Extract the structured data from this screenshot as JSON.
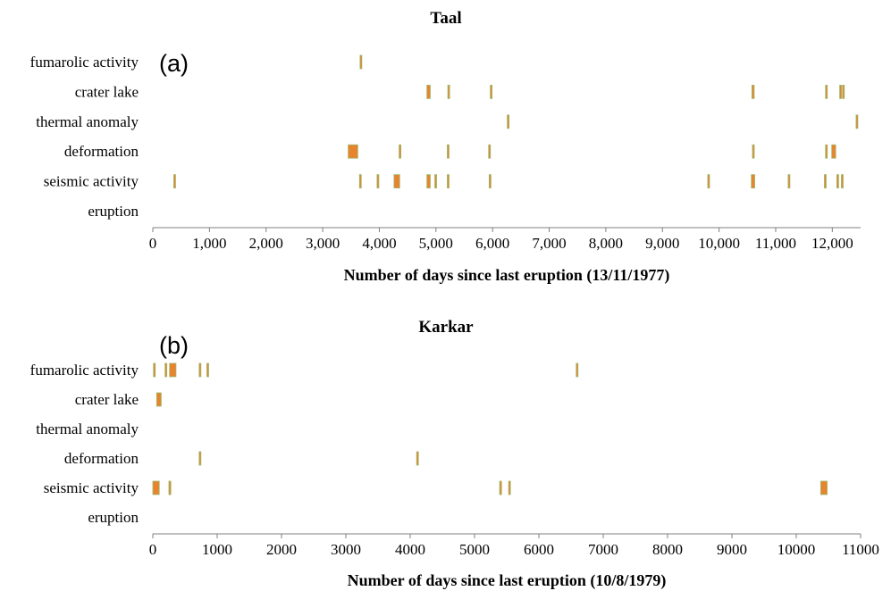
{
  "chart_data": [
    {
      "type": "scatter",
      "title": "Taal",
      "panel_label": "(a)",
      "xlabel": "Number of days since last eruption (13/11/1977)",
      "ylabel": "",
      "xlim": [
        0,
        12500
      ],
      "x_ticks": [
        0,
        1000,
        2000,
        3000,
        4000,
        5000,
        6000,
        7000,
        8000,
        9000,
        10000,
        11000,
        12000
      ],
      "x_tick_labels": [
        "0",
        "1,000",
        "2,000",
        "3,000",
        "4,000",
        "5,000",
        "6,000",
        "7,000",
        "8,000",
        "9,000",
        "10,000",
        "11,000",
        "12,000"
      ],
      "categories": [
        "fumarolic activity",
        "crater lake",
        "thermal anomaly",
        "deformation",
        "seismic activity",
        "eruption"
      ],
      "marker_color": "#e8842e",
      "marker_edge_color": "#9cb86a",
      "series": [
        {
          "category": "fumarolic activity",
          "events": [
            [
              3660,
              3680
            ]
          ]
        },
        {
          "category": "crater lake",
          "events": [
            [
              4840,
              4900
            ],
            [
              5210,
              5230
            ],
            [
              5960,
              5980
            ],
            [
              10580,
              10620
            ],
            [
              11880,
              11900
            ],
            [
              12130,
              12150
            ],
            [
              12180,
              12200
            ]
          ]
        },
        {
          "category": "thermal anomaly",
          "events": [
            [
              6260,
              6280
            ],
            [
              12420,
              12450
            ]
          ]
        },
        {
          "category": "deformation",
          "events": [
            [
              3450,
              3620
            ],
            [
              4350,
              4380
            ],
            [
              5200,
              5230
            ],
            [
              5930,
              5950
            ],
            [
              10590,
              10610
            ],
            [
              11880,
              11900
            ],
            [
              11990,
              12060
            ]
          ]
        },
        {
          "category": "seismic activity",
          "events": [
            [
              370,
              390
            ],
            [
              3650,
              3680
            ],
            [
              3960,
              3980
            ],
            [
              4260,
              4360
            ],
            [
              4840,
              4900
            ],
            [
              4980,
              5000
            ],
            [
              5200,
              5230
            ],
            [
              5940,
              5960
            ],
            [
              9800,
              9830
            ],
            [
              10570,
              10630
            ],
            [
              11220,
              11240
            ],
            [
              11860,
              11880
            ],
            [
              12080,
              12100
            ],
            [
              12160,
              12180
            ]
          ]
        },
        {
          "category": "eruption",
          "events": []
        }
      ]
    },
    {
      "type": "scatter",
      "title": "Karkar",
      "panel_label": "(b)",
      "xlabel": "Number of days since last eruption (10/8/1979)",
      "ylabel": "",
      "xlim": [
        0,
        11000
      ],
      "x_ticks": [
        0,
        1000,
        2000,
        3000,
        4000,
        5000,
        6000,
        7000,
        8000,
        9000,
        10000,
        11000
      ],
      "x_tick_labels": [
        "0",
        "1000",
        "2000",
        "3000",
        "4000",
        "5000",
        "6000",
        "7000",
        "8000",
        "9000",
        "10000",
        "11000"
      ],
      "categories": [
        "fumarolic activity",
        "crater lake",
        "thermal anomaly",
        "deformation",
        "seismic activity",
        "eruption"
      ],
      "marker_color": "#e8842e",
      "marker_edge_color": "#9cb86a",
      "series": [
        {
          "category": "fumarolic activity",
          "events": [
            [
              10,
              30
            ],
            [
              190,
              210
            ],
            [
              260,
              360
            ],
            [
              720,
              740
            ],
            [
              840,
              860
            ],
            [
              6580,
              6600
            ]
          ]
        },
        {
          "category": "crater lake",
          "events": [
            [
              60,
              130
            ]
          ]
        },
        {
          "category": "thermal anomaly",
          "events": []
        },
        {
          "category": "deformation",
          "events": [
            [
              720,
              740
            ],
            [
              4100,
              4120
            ]
          ]
        },
        {
          "category": "seismic activity",
          "events": [
            [
              0,
              100
            ],
            [
              250,
              280
            ],
            [
              5390,
              5420
            ],
            [
              5530,
              5550
            ],
            [
              10380,
              10480
            ]
          ]
        },
        {
          "category": "eruption",
          "events": []
        }
      ]
    }
  ]
}
